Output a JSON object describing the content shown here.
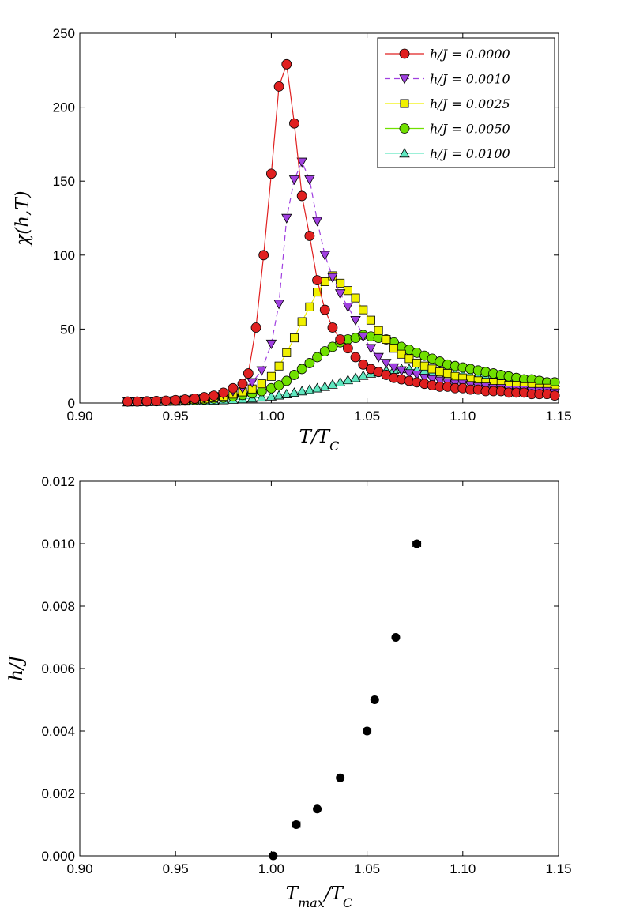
{
  "chart_data": [
    {
      "type": "line",
      "xlabel": "T/T_C",
      "ylabel": "χ(h,T)",
      "xlim": [
        0.9,
        1.15
      ],
      "ylim": [
        0,
        250
      ],
      "xticks": [
        "0.90",
        "0.95",
        "1.00",
        "1.05",
        "1.10",
        "1.15"
      ],
      "yticks": [
        "0",
        "50",
        "100",
        "150",
        "200",
        "250"
      ],
      "xtick_values": [
        0.9,
        0.95,
        1.0,
        1.05,
        1.1,
        1.15
      ],
      "ytick_values": [
        0,
        50,
        100,
        150,
        200,
        250
      ],
      "legend_position": "top-right",
      "series": [
        {
          "name": "h/J = 0.0000",
          "marker": "circle",
          "color": "#e02020",
          "line_style": "solid",
          "x": [
            0.925,
            0.93,
            0.935,
            0.94,
            0.945,
            0.95,
            0.955,
            0.96,
            0.965,
            0.97,
            0.975,
            0.98,
            0.985,
            0.988,
            0.992,
            0.996,
            1.0,
            1.004,
            1.008,
            1.012,
            1.016,
            1.02,
            1.024,
            1.028,
            1.032,
            1.036,
            1.04,
            1.044,
            1.048,
            1.052,
            1.056,
            1.06,
            1.064,
            1.068,
            1.072,
            1.076,
            1.08,
            1.084,
            1.088,
            1.092,
            1.096,
            1.1,
            1.104,
            1.108,
            1.112,
            1.116,
            1.12,
            1.124,
            1.128,
            1.132,
            1.136,
            1.14,
            1.144,
            1.148
          ],
          "y": [
            1,
            1,
            1.2,
            1.4,
            1.6,
            2,
            2.4,
            3,
            4,
            5,
            7,
            10,
            13,
            20,
            51,
            100,
            155,
            214,
            229,
            189,
            140,
            113,
            83,
            63,
            51,
            43,
            37,
            31,
            26,
            23,
            21,
            19,
            17,
            16,
            15,
            14,
            13,
            12,
            11,
            11,
            10,
            10,
            9,
            9,
            8,
            8,
            8,
            7,
            7,
            7,
            6,
            6,
            6,
            5
          ]
        },
        {
          "name": "h/J = 0.0010",
          "marker": "triangle-down",
          "color": "#a040e0",
          "line_style": "dashed",
          "x": [
            0.925,
            0.93,
            0.935,
            0.94,
            0.945,
            0.95,
            0.955,
            0.96,
            0.965,
            0.97,
            0.975,
            0.98,
            0.985,
            0.99,
            0.995,
            1.0,
            1.004,
            1.008,
            1.012,
            1.016,
            1.02,
            1.024,
            1.028,
            1.032,
            1.036,
            1.04,
            1.044,
            1.048,
            1.052,
            1.056,
            1.06,
            1.064,
            1.068,
            1.072,
            1.076,
            1.08,
            1.084,
            1.088,
            1.092,
            1.096,
            1.1,
            1.104,
            1.108,
            1.112,
            1.116,
            1.12,
            1.124,
            1.128,
            1.132,
            1.136,
            1.14,
            1.144,
            1.148
          ],
          "y": [
            1,
            1,
            1.1,
            1.3,
            1.5,
            1.8,
            2.2,
            2.8,
            3.5,
            4.5,
            6,
            8,
            10,
            14,
            22,
            40,
            67,
            125,
            151,
            163,
            151,
            123,
            100,
            85,
            74,
            65,
            56,
            45,
            37,
            31,
            27,
            24,
            22,
            20,
            19,
            17,
            16,
            15,
            14,
            13,
            13,
            12,
            11,
            11,
            10,
            10,
            9,
            9,
            9,
            8,
            8,
            8,
            7
          ]
        },
        {
          "name": "h/J = 0.0025",
          "marker": "square",
          "color": "#f0f000",
          "line_style": "solid",
          "x": [
            0.925,
            0.93,
            0.935,
            0.94,
            0.945,
            0.95,
            0.955,
            0.96,
            0.965,
            0.97,
            0.975,
            0.98,
            0.985,
            0.99,
            0.995,
            1.0,
            1.004,
            1.008,
            1.012,
            1.016,
            1.02,
            1.024,
            1.028,
            1.032,
            1.036,
            1.04,
            1.044,
            1.048,
            1.052,
            1.056,
            1.06,
            1.064,
            1.068,
            1.072,
            1.076,
            1.08,
            1.084,
            1.088,
            1.092,
            1.096,
            1.1,
            1.104,
            1.108,
            1.112,
            1.116,
            1.12,
            1.124,
            1.128,
            1.132,
            1.136,
            1.14,
            1.144,
            1.148
          ],
          "y": [
            1,
            1,
            1.1,
            1.2,
            1.4,
            1.6,
            1.9,
            2.3,
            2.8,
            3.5,
            4.5,
            6,
            7.5,
            9.5,
            13,
            18,
            25,
            34,
            44,
            55,
            65,
            75,
            82,
            86,
            81,
            76,
            71,
            63,
            56,
            49,
            43,
            37,
            33,
            30,
            27,
            25,
            23,
            21,
            20,
            18,
            17,
            16,
            15,
            14,
            14,
            13,
            12,
            12,
            11,
            11,
            10,
            10,
            9
          ]
        },
        {
          "name": "h/J = 0.0050",
          "marker": "circle",
          "color": "#70e000",
          "line_style": "solid",
          "x": [
            0.925,
            0.93,
            0.935,
            0.94,
            0.945,
            0.95,
            0.955,
            0.96,
            0.965,
            0.97,
            0.975,
            0.98,
            0.985,
            0.99,
            0.995,
            1.0,
            1.004,
            1.008,
            1.012,
            1.016,
            1.02,
            1.024,
            1.028,
            1.032,
            1.036,
            1.04,
            1.044,
            1.048,
            1.052,
            1.056,
            1.06,
            1.064,
            1.068,
            1.072,
            1.076,
            1.08,
            1.084,
            1.088,
            1.092,
            1.096,
            1.1,
            1.104,
            1.108,
            1.112,
            1.116,
            1.12,
            1.124,
            1.128,
            1.132,
            1.136,
            1.14,
            1.144,
            1.148
          ],
          "y": [
            1,
            1,
            1.1,
            1.2,
            1.3,
            1.5,
            1.7,
            2,
            2.4,
            3,
            3.6,
            4.4,
            5.4,
            6.5,
            8,
            10,
            12,
            15,
            19,
            23,
            27,
            31,
            35,
            38,
            41,
            43,
            44,
            46,
            45,
            44,
            43,
            41,
            38,
            36,
            34,
            32,
            30,
            28,
            26,
            25,
            24,
            23,
            22,
            21,
            20,
            19,
            18,
            17,
            16,
            16,
            15,
            14,
            14
          ]
        },
        {
          "name": "h/J = 0.0100",
          "marker": "triangle-up",
          "color": "#60e8c0",
          "line_style": "solid",
          "x": [
            0.925,
            0.93,
            0.935,
            0.94,
            0.945,
            0.95,
            0.955,
            0.96,
            0.965,
            0.97,
            0.975,
            0.98,
            0.985,
            0.99,
            0.995,
            1.0,
            1.004,
            1.008,
            1.012,
            1.016,
            1.02,
            1.024,
            1.028,
            1.032,
            1.036,
            1.04,
            1.044,
            1.048,
            1.052,
            1.056,
            1.06,
            1.064,
            1.068,
            1.072,
            1.076,
            1.08,
            1.084,
            1.088,
            1.092,
            1.096,
            1.1,
            1.104,
            1.108,
            1.112,
            1.116,
            1.12,
            1.124,
            1.128,
            1.132,
            1.136,
            1.14,
            1.144,
            1.148
          ],
          "y": [
            0.5,
            0.6,
            0.7,
            0.8,
            0.9,
            1,
            1.1,
            1.3,
            1.5,
            1.7,
            2,
            2.3,
            2.7,
            3.2,
            3.8,
            4.5,
            5.2,
            6,
            7,
            8,
            9,
            10,
            11,
            12.5,
            14,
            15.5,
            17,
            18.5,
            20,
            21,
            22,
            22.5,
            23,
            23,
            22.5,
            22,
            21.5,
            21,
            20.5,
            20,
            19.5,
            19,
            18.5,
            18,
            17.5,
            17,
            16.5,
            16,
            15.5,
            15,
            14.5,
            14,
            13.5
          ]
        }
      ]
    },
    {
      "type": "scatter",
      "xlabel": "T_max/T_C",
      "ylabel": "h/J",
      "xlim": [
        0.9,
        1.15
      ],
      "ylim": [
        0,
        0.012
      ],
      "xticks": [
        "0.90",
        "0.95",
        "1.00",
        "1.05",
        "1.10",
        "1.15"
      ],
      "yticks": [
        "0.000",
        "0.002",
        "0.004",
        "0.006",
        "0.008",
        "0.010",
        "0.012"
      ],
      "xtick_values": [
        0.9,
        0.95,
        1.0,
        1.05,
        1.1,
        1.15
      ],
      "ytick_values": [
        0,
        0.002,
        0.004,
        0.006,
        0.008,
        0.01,
        0.012
      ],
      "color": "#000000",
      "points": [
        {
          "x": 1.001,
          "y": 0.0,
          "xerr": 0.001
        },
        {
          "x": 1.013,
          "y": 0.001,
          "xerr": 0.002
        },
        {
          "x": 1.024,
          "y": 0.0015,
          "xerr": 0.001
        },
        {
          "x": 1.036,
          "y": 0.0025,
          "xerr": 0.001
        },
        {
          "x": 1.05,
          "y": 0.004,
          "xerr": 0.002
        },
        {
          "x": 1.054,
          "y": 0.005,
          "xerr": 0.001
        },
        {
          "x": 1.065,
          "y": 0.007,
          "xerr": 0.001
        },
        {
          "x": 1.076,
          "y": 0.01,
          "xerr": 0.002
        }
      ]
    }
  ]
}
